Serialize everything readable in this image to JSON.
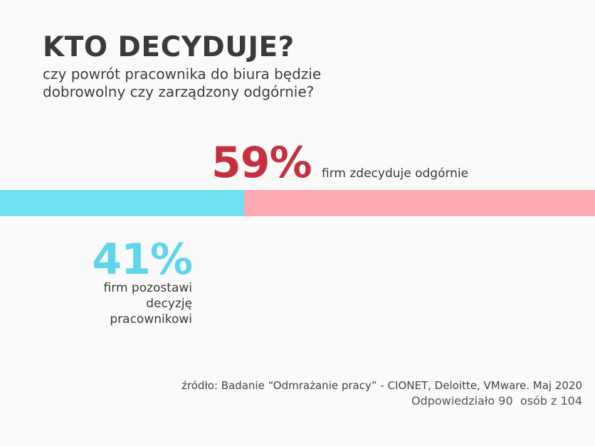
{
  "title": "KTO DECYDUJE?",
  "subtitle": "czy powrót pracownika do biura będzie dobrowolny czy zarządzony odgórnie?",
  "chart_data": {
    "type": "bar",
    "orientation": "horizontal-stacked",
    "series": [
      {
        "value": 41,
        "label": "41%",
        "description": "firm pozostawi decyzję pracownikowi",
        "color": "#6fe1f1"
      },
      {
        "value": 59,
        "label": "59%",
        "description": "firm zdecyduje odgórnie",
        "color": "#fda9b4"
      }
    ],
    "label_colors": {
      "41": "#5fd6ea",
      "59": "#c5303f"
    }
  },
  "footer": {
    "source": "źródło: Badanie “Odmrażanie pracy” - CIONET, Deloitte, VMware. Maj 2020",
    "responded": "Odpowiedziało 90  osób z 104"
  }
}
